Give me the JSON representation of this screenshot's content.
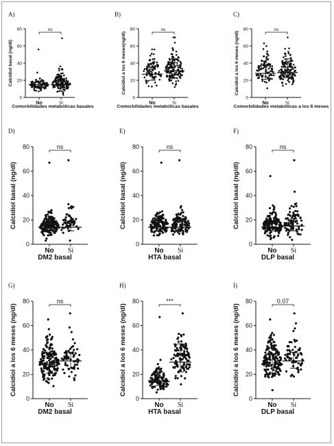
{
  "chart_data": [
    {
      "panel": "A)",
      "type": "scatter",
      "ylabel": "Calcidiol basal (ng/dl)",
      "xlabel": "Comorbilidades metabólicas basales",
      "categories": [
        "No",
        "Sí"
      ],
      "ylim": [
        0,
        80
      ],
      "yticks": [
        0,
        20,
        40,
        60,
        80
      ],
      "significance": "ns",
      "groups": [
        {
          "name": "No",
          "n": 90,
          "center": 14,
          "spread": 5,
          "max": 56,
          "median": 15,
          "q1": 11,
          "q3": 19
        },
        {
          "name": "Sí",
          "n": 150,
          "center": 15,
          "spread": 7,
          "max": 69,
          "median": 15,
          "q1": 11,
          "q3": 21
        }
      ]
    },
    {
      "panel": "B)",
      "type": "scatter",
      "ylabel": "Calcidiol a los 6 meses(ng/dl)",
      "xlabel": "Comorbilidades metabólicas basales",
      "categories": [
        "No",
        "Sí"
      ],
      "ylim": [
        0,
        80
      ],
      "yticks": [
        0,
        20,
        40,
        60,
        80
      ],
      "significance": "ns",
      "groups": [
        {
          "name": "No",
          "n": 90,
          "center": 28,
          "spread": 10,
          "max": 56,
          "median": 27,
          "q1": 20,
          "q3": 33
        },
        {
          "name": "Sí",
          "n": 150,
          "center": 30,
          "spread": 11,
          "max": 70,
          "median": 31,
          "q1": 23,
          "q3": 45
        }
      ]
    },
    {
      "panel": "C)",
      "type": "scatter",
      "ylabel": "Calcidiol a los 6 meses (ng/dl)",
      "xlabel": "Comorbilidades metabólicas a los 6 meses",
      "categories": [
        "No",
        "Sí"
      ],
      "ylim": [
        0,
        80
      ],
      "yticks": [
        0,
        20,
        40,
        60,
        80
      ],
      "significance": "ns",
      "groups": [
        {
          "name": "No",
          "n": 100,
          "center": 29,
          "spread": 10,
          "max": 63,
          "median": 28,
          "q1": 21,
          "q3": 37
        },
        {
          "name": "Sí",
          "n": 140,
          "center": 29,
          "spread": 11,
          "max": 70,
          "median": 29,
          "q1": 23,
          "q3": 45
        }
      ]
    },
    {
      "panel": "D)",
      "type": "scatter",
      "ylabel": "Calcidiol basal (ng/dl)",
      "xlabel": "DM2 basal",
      "categories": [
        "No",
        "Sí"
      ],
      "ylim": [
        0,
        80
      ],
      "yticks": [
        0,
        20,
        40,
        60,
        80
      ],
      "significance": "ns",
      "groups": [
        {
          "name": "No",
          "n": 170,
          "center": 14,
          "spread": 6,
          "max": 67,
          "median": 14,
          "q1": 11,
          "q3": 18
        },
        {
          "name": "Sí",
          "n": 60,
          "center": 15,
          "spread": 7,
          "max": 69,
          "median": 14,
          "q1": 11,
          "q3": 19
        }
      ]
    },
    {
      "panel": "E)",
      "type": "scatter",
      "ylabel": "Calcidiol basal (ng/dl)",
      "xlabel": "HTA basal",
      "categories": [
        "No",
        "Sí"
      ],
      "ylim": [
        0,
        80
      ],
      "yticks": [
        0,
        20,
        40,
        60,
        80
      ],
      "significance": "ns",
      "groups": [
        {
          "name": "No",
          "n": 130,
          "center": 14,
          "spread": 6,
          "max": 67,
          "median": 14,
          "q1": 11,
          "q3": 18
        },
        {
          "name": "Sí",
          "n": 110,
          "center": 15,
          "spread": 7,
          "max": 69,
          "median": 14,
          "q1": 11,
          "q3": 19
        }
      ]
    },
    {
      "panel": "F)",
      "type": "scatter",
      "ylabel": "Calcidiol basal (ng/dl)",
      "xlabel": "DLP basal",
      "categories": [
        "No",
        "Sí"
      ],
      "ylim": [
        0,
        80
      ],
      "yticks": [
        0,
        20,
        40,
        60,
        80
      ],
      "significance": "ns",
      "groups": [
        {
          "name": "No",
          "n": 160,
          "center": 14,
          "spread": 6,
          "max": 56,
          "median": 14,
          "q1": 11,
          "q3": 18
        },
        {
          "name": "Sí",
          "n": 80,
          "center": 15,
          "spread": 8,
          "max": 69,
          "median": 15,
          "q1": 11,
          "q3": 21
        }
      ]
    },
    {
      "panel": "G)",
      "type": "scatter",
      "ylabel": "Calcidiol a los 6 meses (ng/dl)",
      "xlabel": "DM2 basal",
      "categories": [
        "No",
        "Sí"
      ],
      "ylim": [
        0,
        80
      ],
      "yticks": [
        0,
        20,
        40,
        60,
        80
      ],
      "significance": "ns",
      "groups": [
        {
          "name": "No",
          "n": 170,
          "center": 28,
          "spread": 11,
          "max": 65,
          "median": 28,
          "q1": 21,
          "q3": 36
        },
        {
          "name": "Sí",
          "n": 60,
          "center": 30,
          "spread": 11,
          "max": 70,
          "median": 31,
          "q1": 25,
          "q3": 38
        }
      ]
    },
    {
      "panel": "H)",
      "type": "scatter",
      "ylabel": "Calcidiol a los 6 meses (ng/dl)",
      "xlabel": "HTA basal",
      "categories": [
        "No",
        "Sí"
      ],
      "ylim": [
        0,
        80
      ],
      "yticks": [
        0,
        20,
        40,
        60,
        80
      ],
      "significance": "***",
      "groups": [
        {
          "name": "No",
          "n": 120,
          "center": 14,
          "spread": 6,
          "max": 67,
          "median": 14,
          "q1": 11,
          "q3": 18
        },
        {
          "name": "Sí",
          "n": 110,
          "center": 31,
          "spread": 12,
          "max": 70,
          "median": 30,
          "q1": 22,
          "q3": 45
        }
      ]
    },
    {
      "panel": "I)",
      "type": "scatter",
      "ylabel": "Calcidiol a los 6 meses (ng/dl)",
      "xlabel": "DLP basal",
      "categories": [
        "No",
        "Sí"
      ],
      "ylim": [
        0,
        80
      ],
      "yticks": [
        0,
        20,
        40,
        60,
        80
      ],
      "significance": "0.07",
      "groups": [
        {
          "name": "No",
          "n": 160,
          "center": 28,
          "spread": 11,
          "max": 65,
          "median": 28,
          "q1": 21,
          "q3": 36
        },
        {
          "name": "Sí",
          "n": 70,
          "center": 31,
          "spread": 11,
          "max": 70,
          "median": 31,
          "q1": 25,
          "q3": 38
        }
      ]
    }
  ]
}
